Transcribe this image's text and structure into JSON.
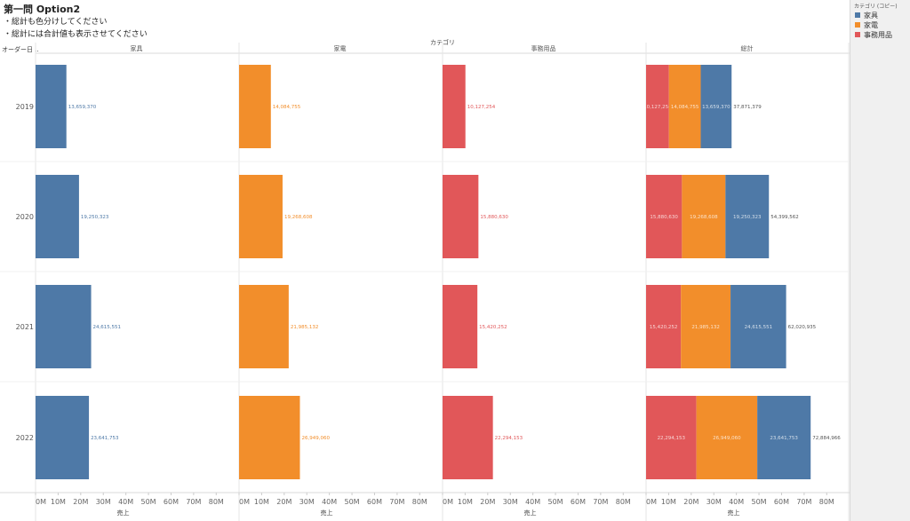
{
  "header": {
    "title": "第一問 Option2",
    "notes": [
      "・総計も色分けしてください",
      "・総計には合計値も表示させてください"
    ]
  },
  "legend": {
    "title": "カテゴリ (コピー)",
    "items": [
      {
        "label": "家具",
        "color": "#4e79a7"
      },
      {
        "label": "家電",
        "color": "#f28e2b"
      },
      {
        "label": "事務用品",
        "color": "#e15759"
      }
    ]
  },
  "chart_data": {
    "type": "bar",
    "orientation": "horizontal",
    "top_header": "カテゴリ",
    "row_header": "オーダー日 ..",
    "panels": [
      "家具",
      "家電",
      "事務用品",
      "総計"
    ],
    "categories": [
      "2019",
      "2020",
      "2021",
      "2022"
    ],
    "series": [
      {
        "name": "家具",
        "color": "#4e79a7",
        "values": [
          13659370,
          19250323,
          24615551,
          23641753
        ]
      },
      {
        "name": "家電",
        "color": "#f28e2b",
        "values": [
          14084755,
          19268608,
          21985132,
          26949060
        ]
      },
      {
        "name": "事務用品",
        "color": "#e15759",
        "values": [
          10127254,
          15880630,
          15420252,
          22294153
        ]
      }
    ],
    "totals": [
      37871379,
      54399562,
      62020935,
      72884966
    ],
    "total_stack_order": [
      "事務用品",
      "家電",
      "家具"
    ],
    "xlabel": "売上",
    "xlim": [
      0,
      85000000
    ],
    "xticks": [
      "0M",
      "10M",
      "20M",
      "30M",
      "40M",
      "50M",
      "60M",
      "70M",
      "80M"
    ],
    "xtick_values": [
      0,
      10000000,
      20000000,
      30000000,
      40000000,
      50000000,
      60000000,
      70000000,
      80000000
    ]
  }
}
